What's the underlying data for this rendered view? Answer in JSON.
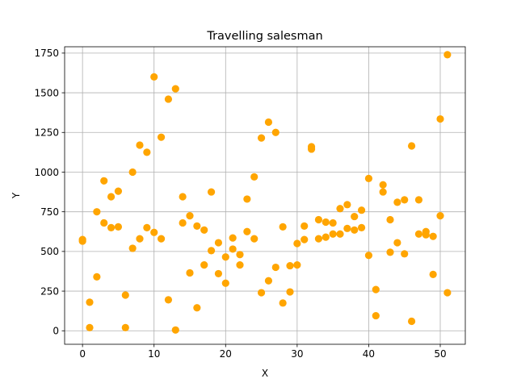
{
  "chart_data": {
    "type": "scatter",
    "title": "Travelling salesman",
    "xlabel": "X",
    "ylabel": "Y",
    "xlim": [
      -2.5,
      53.5
    ],
    "ylim": [
      -85,
      1790
    ],
    "xticks": [
      0,
      10,
      20,
      30,
      40,
      50
    ],
    "yticks": [
      0,
      250,
      500,
      750,
      1000,
      1250,
      1500,
      1750
    ],
    "grid": true,
    "marker_color": "#ffa500",
    "series": [
      {
        "points": [
          [
            0,
            575
          ],
          [
            0,
            565
          ],
          [
            1,
            180
          ],
          [
            1,
            20
          ],
          [
            2,
            750
          ],
          [
            2,
            340
          ],
          [
            3,
            945
          ],
          [
            3,
            680
          ],
          [
            4,
            845
          ],
          [
            4,
            650
          ],
          [
            5,
            655
          ],
          [
            5,
            880
          ],
          [
            6,
            225
          ],
          [
            6,
            20
          ],
          [
            7,
            520
          ],
          [
            7,
            1000
          ],
          [
            8,
            580
          ],
          [
            8,
            1170
          ],
          [
            9,
            1125
          ],
          [
            9,
            650
          ],
          [
            10,
            1600
          ],
          [
            10,
            620
          ],
          [
            11,
            1220
          ],
          [
            11,
            580
          ],
          [
            12,
            1460
          ],
          [
            12,
            195
          ],
          [
            13,
            1525
          ],
          [
            13,
            5
          ],
          [
            14,
            845
          ],
          [
            14,
            680
          ],
          [
            15,
            725
          ],
          [
            15,
            365
          ],
          [
            16,
            660
          ],
          [
            16,
            145
          ],
          [
            17,
            635
          ],
          [
            17,
            415
          ],
          [
            18,
            875
          ],
          [
            18,
            505
          ],
          [
            19,
            555
          ],
          [
            19,
            360
          ],
          [
            20,
            465
          ],
          [
            20,
            300
          ],
          [
            21,
            585
          ],
          [
            21,
            515
          ],
          [
            22,
            480
          ],
          [
            22,
            415
          ],
          [
            23,
            830
          ],
          [
            23,
            625
          ],
          [
            24,
            970
          ],
          [
            24,
            580
          ],
          [
            25,
            1215
          ],
          [
            25,
            240
          ],
          [
            26,
            1315
          ],
          [
            26,
            315
          ],
          [
            27,
            1250
          ],
          [
            27,
            400
          ],
          [
            28,
            655
          ],
          [
            28,
            175
          ],
          [
            29,
            410
          ],
          [
            29,
            245
          ],
          [
            30,
            415
          ],
          [
            30,
            550
          ],
          [
            31,
            660
          ],
          [
            31,
            575
          ],
          [
            32,
            1160
          ],
          [
            32,
            1145
          ],
          [
            33,
            700
          ],
          [
            33,
            580
          ],
          [
            34,
            685
          ],
          [
            34,
            590
          ],
          [
            35,
            610
          ],
          [
            35,
            680
          ],
          [
            36,
            770
          ],
          [
            36,
            610
          ],
          [
            37,
            795
          ],
          [
            37,
            645
          ],
          [
            38,
            720
          ],
          [
            38,
            635
          ],
          [
            39,
            760
          ],
          [
            39,
            650
          ],
          [
            40,
            960
          ],
          [
            40,
            475
          ],
          [
            41,
            260
          ],
          [
            41,
            95
          ],
          [
            42,
            920
          ],
          [
            42,
            875
          ],
          [
            43,
            700
          ],
          [
            43,
            495
          ],
          [
            44,
            810
          ],
          [
            44,
            555
          ],
          [
            45,
            825
          ],
          [
            45,
            485
          ],
          [
            46,
            1165
          ],
          [
            46,
            60
          ],
          [
            47,
            825
          ],
          [
            47,
            610
          ],
          [
            48,
            625
          ],
          [
            48,
            605
          ],
          [
            49,
            595
          ],
          [
            49,
            355
          ],
          [
            50,
            1335
          ],
          [
            50,
            725
          ],
          [
            51,
            1740
          ],
          [
            51,
            240
          ]
        ]
      }
    ]
  }
}
